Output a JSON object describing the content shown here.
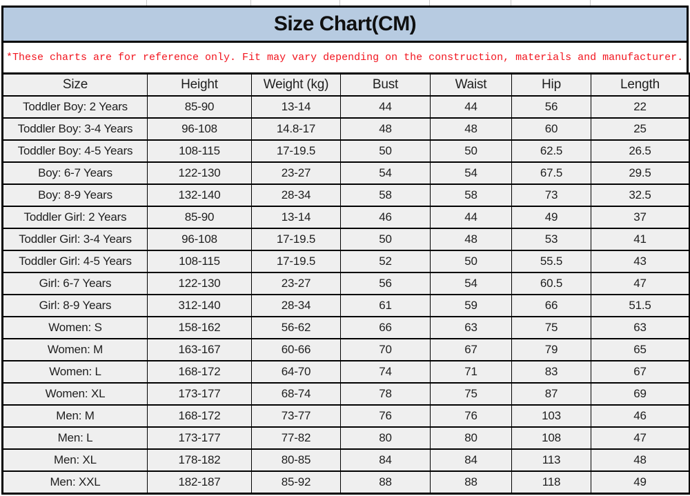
{
  "title": "Size Chart(CM)",
  "disclaimer": "*These charts are for reference only. Fit may vary depending on the construction, materials and manufacturer.",
  "colors": {
    "title_bg": "#b7cbe1",
    "disclaimer_red": "#f2141e",
    "cell_bg": "#efefef",
    "border": "#000000",
    "text": "#1e1e1e"
  },
  "chart_data": {
    "type": "table",
    "title": "Size Chart(CM)",
    "columns": [
      "Size",
      "Height",
      "Weight (kg)",
      "Bust",
      "Waist",
      "Hip",
      "Length"
    ],
    "rows": [
      [
        "Toddler Boy: 2 Years",
        "85-90",
        "13-14",
        "44",
        "44",
        "56",
        "22"
      ],
      [
        "Toddler Boy: 3-4 Years",
        "96-108",
        "14.8-17",
        "48",
        "48",
        "60",
        "25"
      ],
      [
        "Toddler Boy: 4-5 Years",
        "108-115",
        "17-19.5",
        "50",
        "50",
        "62.5",
        "26.5"
      ],
      [
        "Boy: 6-7 Years",
        "122-130",
        "23-27",
        "54",
        "54",
        "67.5",
        "29.5"
      ],
      [
        "Boy: 8-9 Years",
        "132-140",
        "28-34",
        "58",
        "58",
        "73",
        "32.5"
      ],
      [
        "Toddler Girl: 2 Years",
        "85-90",
        "13-14",
        "46",
        "44",
        "49",
        "37"
      ],
      [
        "Toddler Girl: 3-4 Years",
        "96-108",
        "17-19.5",
        "50",
        "48",
        "53",
        "41"
      ],
      [
        "Toddler Girl: 4-5 Years",
        "108-115",
        "17-19.5",
        "52",
        "50",
        "55.5",
        "43"
      ],
      [
        "Girl: 6-7 Years",
        "122-130",
        "23-27",
        "56",
        "54",
        "60.5",
        "47"
      ],
      [
        "Girl: 8-9 Years",
        "312-140",
        "28-34",
        "61",
        "59",
        "66",
        "51.5"
      ],
      [
        "Women: S",
        "158-162",
        "56-62",
        "66",
        "63",
        "75",
        "63"
      ],
      [
        "Women: M",
        "163-167",
        "60-66",
        "70",
        "67",
        "79",
        "65"
      ],
      [
        "Women: L",
        "168-172",
        "64-70",
        "74",
        "71",
        "83",
        "67"
      ],
      [
        "Women: XL",
        "173-177",
        "68-74",
        "78",
        "75",
        "87",
        "69"
      ],
      [
        "Men: M",
        "168-172",
        "73-77",
        "76",
        "76",
        "103",
        "46"
      ],
      [
        "Men: L",
        "173-177",
        "77-82",
        "80",
        "80",
        "108",
        "47"
      ],
      [
        "Men: XL",
        "178-182",
        "80-85",
        "84",
        "84",
        "113",
        "48"
      ],
      [
        "Men: XXL",
        "182-187",
        "85-92",
        "88",
        "88",
        "118",
        "49"
      ]
    ]
  }
}
